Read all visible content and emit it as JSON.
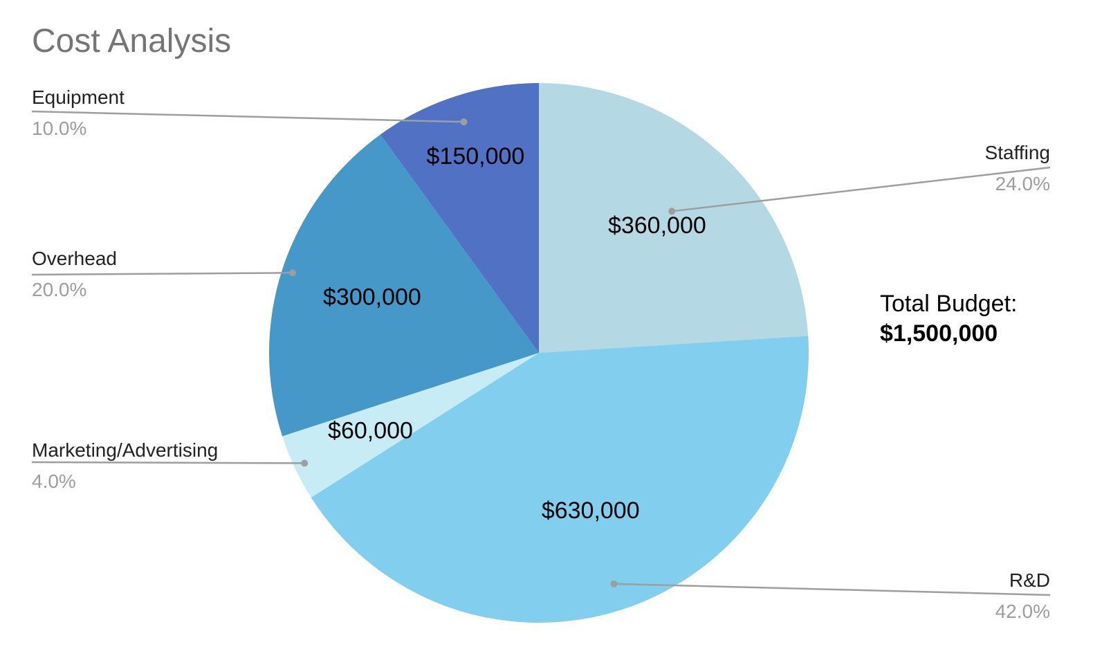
{
  "chart_data": {
    "type": "pie",
    "title": "Cost Analysis",
    "start_angle_deg": 0,
    "direction": "clockwise",
    "slices": [
      {
        "name": "Staffing",
        "value": 360000,
        "value_label": "$360,000",
        "percent_label": "24.0%",
        "color": "#b5d8e5"
      },
      {
        "name": "R&D",
        "value": 630000,
        "value_label": "$630,000",
        "percent_label": "42.0%",
        "color": "#81ceef"
      },
      {
        "name": "Marketing/Advertising",
        "value": 60000,
        "value_label": "$60,000",
        "percent_label": "4.0%",
        "color": "#c8ecf5"
      },
      {
        "name": "Overhead",
        "value": 300000,
        "value_label": "$300,000",
        "percent_label": "20.0%",
        "color": "#4598c8"
      },
      {
        "name": "Equipment",
        "value": 150000,
        "value_label": "$150,000",
        "percent_label": "10.0%",
        "color": "#5172c4"
      }
    ],
    "annotation": {
      "label": "Total Budget:",
      "value": "$1,500,000"
    }
  }
}
